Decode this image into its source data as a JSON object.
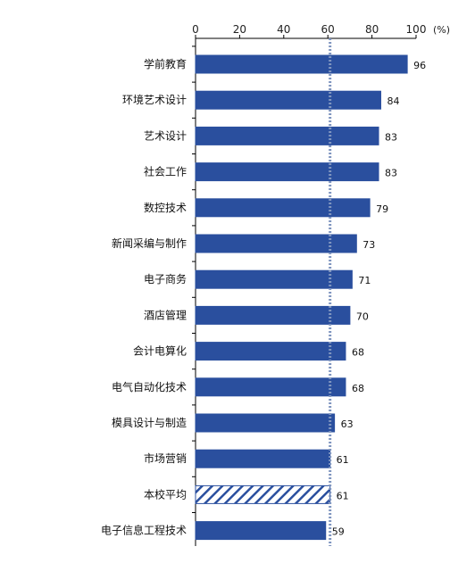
{
  "chart_data": {
    "type": "bar",
    "orientation": "horizontal",
    "title": "",
    "xlabel": "",
    "ylabel": "",
    "unit": "(%)",
    "xlim": [
      0,
      100
    ],
    "x_ticks": [
      "0",
      "20",
      "40",
      "60",
      "80",
      "100"
    ],
    "grid": false,
    "bar_color": "#2a4f9e",
    "reference_line": {
      "value": 61,
      "color": "#7f95bf",
      "style": "dotted"
    },
    "categories": [
      "学前教育",
      "环境艺术设计",
      "艺术设计",
      "社会工作",
      "数控技术",
      "新闻采编与制作",
      "电子商务",
      "酒店管理",
      "会计电算化",
      "电气自动化技术",
      "模具设计与制造",
      "市场营销",
      "本校平均",
      "电子信息工程技术"
    ],
    "values": [
      96,
      84,
      83,
      83,
      79,
      73,
      71,
      70,
      68,
      68,
      63,
      61,
      61,
      59
    ],
    "highlight_category": "本校平均",
    "highlight_style": "diagonal-hatch"
  }
}
